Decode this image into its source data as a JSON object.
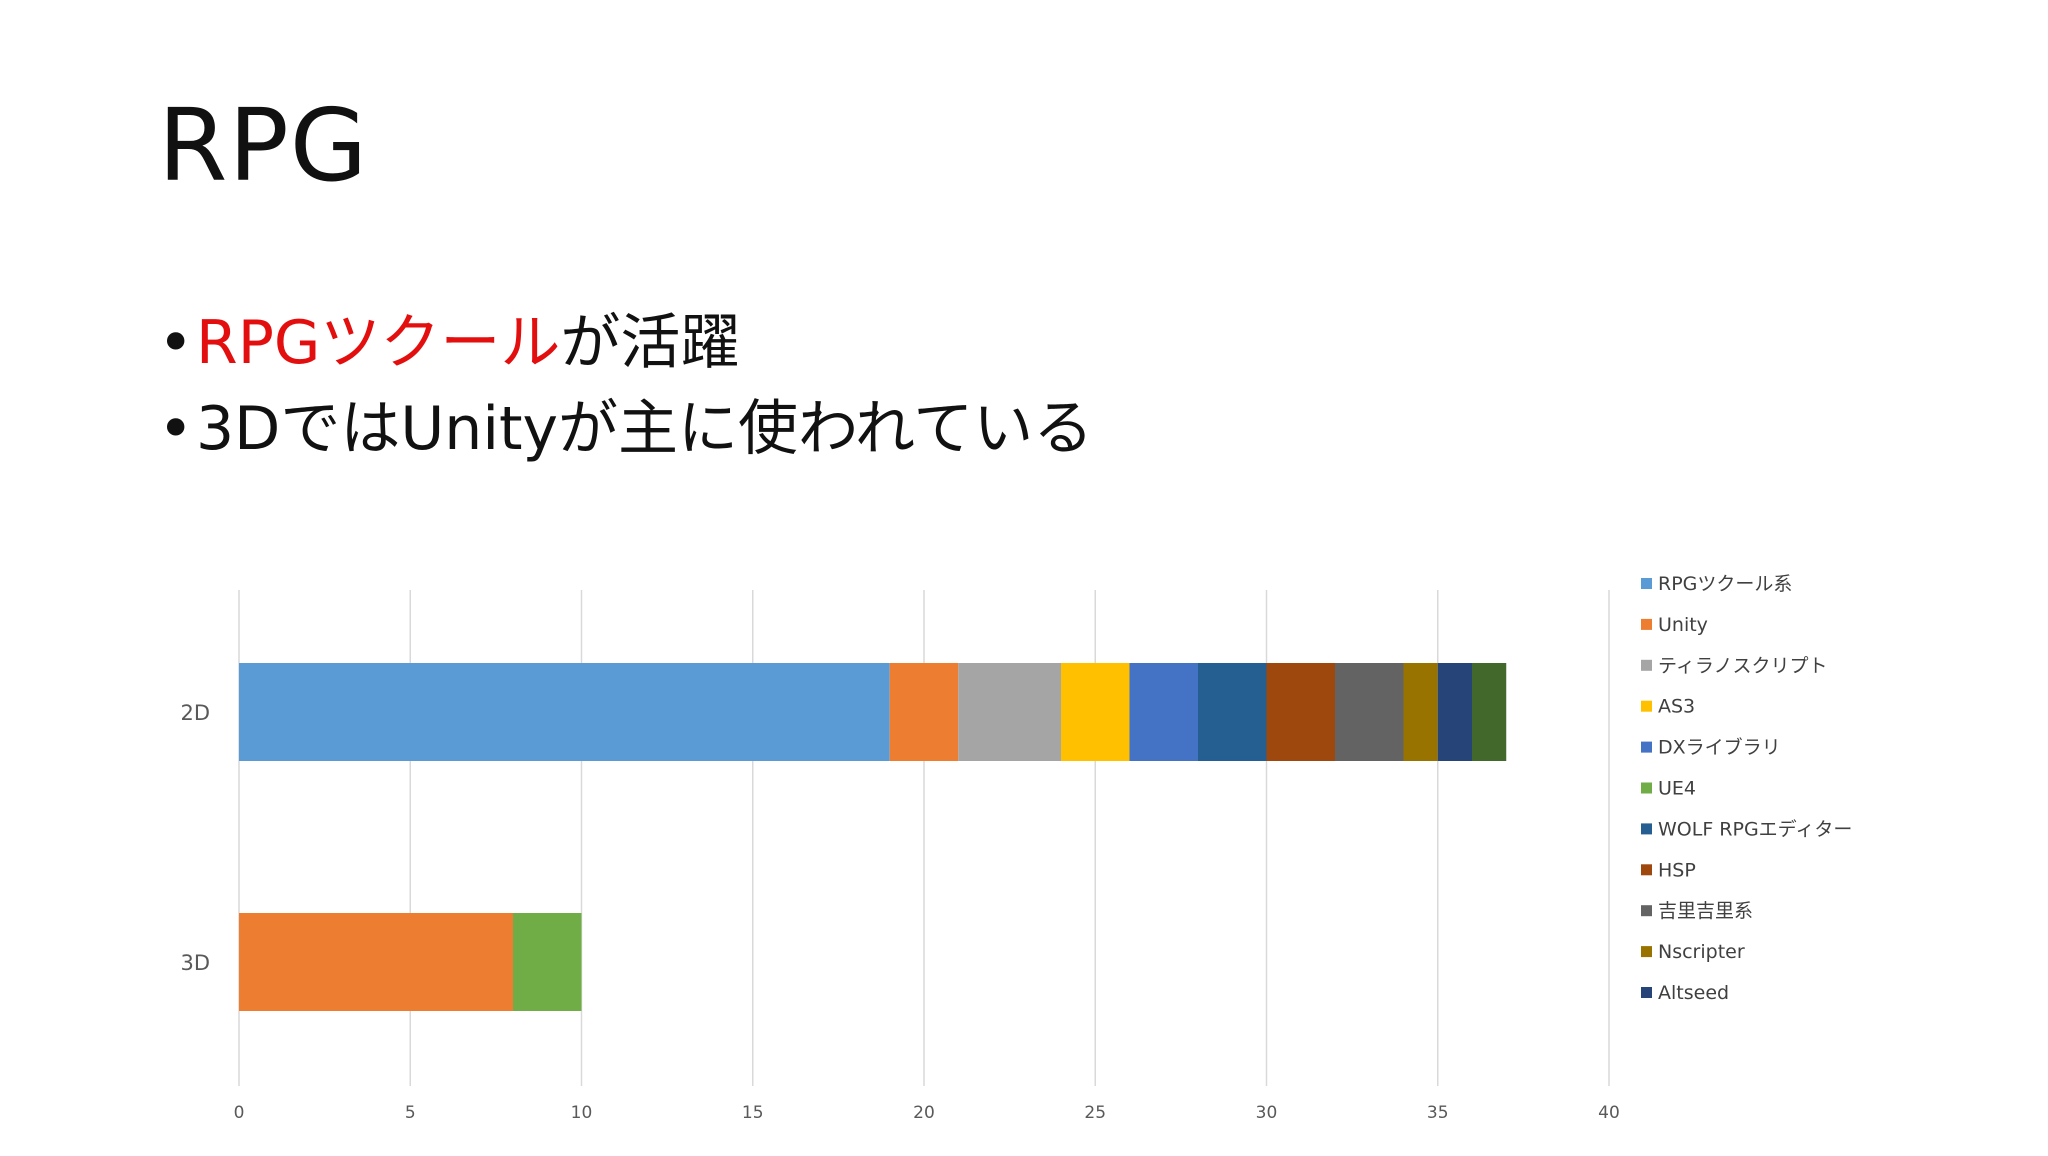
{
  "slide": {
    "title": "RPG",
    "bullets": [
      {
        "highlight": "RPGツクール",
        "rest": "が活躍"
      },
      {
        "highlight": "",
        "rest": "3DではUnityが主に使われている"
      }
    ],
    "accent_color": "#e30e0e"
  },
  "chart_data": {
    "type": "bar",
    "orientation": "horizontal",
    "stacked": true,
    "title": "",
    "xlabel": "",
    "ylabel": "",
    "categories": [
      "2D",
      "3D"
    ],
    "xlim": [
      0,
      40
    ],
    "xticks": [
      0,
      5,
      10,
      15,
      20,
      25,
      30,
      35,
      40
    ],
    "grid": true,
    "legend_position": "right",
    "series": [
      {
        "name": "RPGツクール系",
        "color": "#5b9bd5",
        "values": [
          19,
          0
        ]
      },
      {
        "name": "Unity",
        "color": "#ed7d31",
        "values": [
          2,
          8
        ]
      },
      {
        "name": "ティラノスクリプト",
        "color": "#a5a5a5",
        "values": [
          3,
          0
        ]
      },
      {
        "name": "AS3",
        "color": "#ffc000",
        "values": [
          2,
          0
        ]
      },
      {
        "name": "DXライブラリ",
        "color": "#4472c4",
        "values": [
          2,
          0
        ]
      },
      {
        "name": "UE4",
        "color": "#70ad47",
        "values": [
          0,
          2
        ]
      },
      {
        "name": "WOLF RPGエディター",
        "color": "#255e91",
        "values": [
          2,
          0
        ]
      },
      {
        "name": "HSP",
        "color": "#9e480e",
        "values": [
          2,
          0
        ]
      },
      {
        "name": "吉里吉里系",
        "color": "#636363",
        "values": [
          2,
          0
        ]
      },
      {
        "name": "Nscripter",
        "color": "#997300",
        "values": [
          1,
          0
        ]
      },
      {
        "name": "Altseed",
        "color": "#264478",
        "values": [
          1,
          0
        ]
      },
      {
        "name": "",
        "color": "#43682b",
        "values": [
          1,
          0
        ]
      }
    ]
  }
}
